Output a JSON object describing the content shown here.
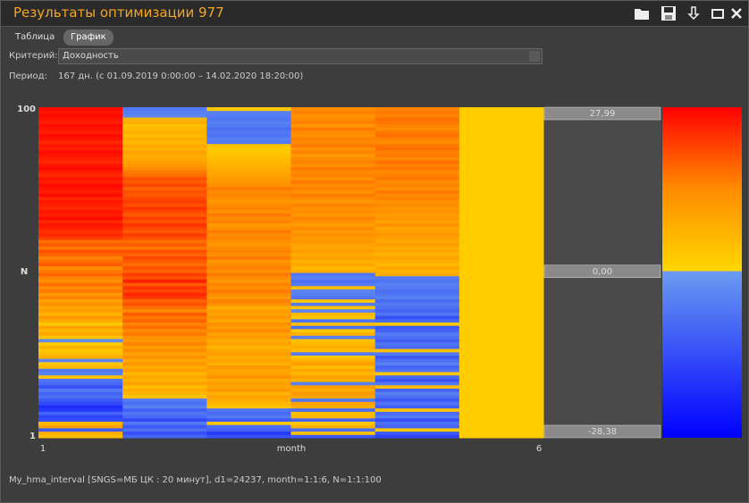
{
  "window_title": "Результаты оптимизации 977",
  "tabs": [
    "Таблица",
    "График"
  ],
  "criterion_label": "Критерий:",
  "criterion_value": "Доходность",
  "period_label": "Период:",
  "period_value": "167 дн.  (с 01.09.2019 0:00:00 – 14.02.2020 18:20:00)",
  "footer": "My_hma_interval [SNGS=МБ ЦК : 20 минут], d1=24237, month=1:1:6, N=1:1:100",
  "chart_data": {
    "type": "heatmap",
    "xlabel": "month",
    "ylabel": "N",
    "xlim": [
      1,
      6
    ],
    "xticks": [
      1,
      6
    ],
    "ylim": [
      1,
      100
    ],
    "yticks": [
      1,
      100
    ],
    "zlim": [
      -28.38,
      27.99
    ],
    "zticks": [
      {
        "value": 27.99,
        "label": "27,99"
      },
      {
        "value": 0,
        "label": "0,00"
      },
      {
        "value": -28.38,
        "label": "-28,38"
      }
    ],
    "positive_colors": [
      "#ffd700",
      "#ff8c00",
      "#ff0000"
    ],
    "negative_colors": [
      "#6a9bf0",
      "#0000ff"
    ],
    "z": [
      [
        5,
        8,
        -12,
        10,
        6,
        -14,
        -16,
        -10,
        -18,
        -20,
        -15,
        -12,
        -8,
        -10,
        -6,
        -14,
        -9,
        -7,
        4,
        -5,
        -6,
        6,
        3,
        -4,
        8,
        5,
        3,
        7,
        2,
        -3,
        4,
        9,
        6,
        10,
        3,
        8,
        12,
        7,
        11,
        9,
        13,
        10,
        15,
        12,
        16,
        14,
        17,
        13,
        15,
        18,
        16,
        14,
        19,
        17,
        15,
        18,
        20,
        16,
        19,
        17,
        22,
        24,
        23,
        25,
        26,
        24,
        27,
        25,
        26,
        24,
        25,
        26,
        24,
        27,
        25,
        26,
        27,
        25,
        26,
        24,
        25,
        27,
        26,
        24,
        25,
        26,
        27,
        25,
        26,
        24,
        26,
        27,
        25,
        26,
        27,
        25,
        26,
        27,
        26,
        27
      ],
      [
        -10,
        -14,
        -8,
        -12,
        -6,
        -15,
        -9,
        -7,
        -11,
        -5,
        -8,
        -6,
        4,
        6,
        8,
        5,
        10,
        7,
        9,
        6,
        11,
        8,
        12,
        9,
        13,
        10,
        14,
        11,
        15,
        12,
        13,
        16,
        14,
        17,
        15,
        18,
        16,
        19,
        14,
        17,
        20,
        18,
        22,
        24,
        21,
        23,
        19,
        25,
        20,
        22,
        18,
        20,
        17,
        19,
        21,
        18,
        20,
        16,
        19,
        17,
        20,
        22,
        19,
        21,
        23,
        20,
        22,
        19,
        21,
        23,
        20,
        22,
        21,
        19,
        20,
        18,
        21,
        19,
        20,
        17,
        16,
        14,
        12,
        10,
        9,
        8,
        10,
        7,
        9,
        6,
        8,
        5,
        7,
        6,
        4,
        8,
        6,
        -4,
        -5,
        -6
      ],
      [
        -14,
        -18,
        -10,
        -8,
        3,
        -12,
        -6,
        -9,
        -7,
        4,
        6,
        8,
        10,
        7,
        12,
        9,
        11,
        8,
        13,
        10,
        9,
        12,
        7,
        10,
        8,
        11,
        9,
        6,
        10,
        8,
        12,
        10,
        14,
        11,
        13,
        9,
        12,
        10,
        11,
        8,
        13,
        15,
        12,
        14,
        16,
        13,
        15,
        12,
        14,
        16,
        13,
        15,
        14,
        12,
        16,
        13,
        15,
        14,
        12,
        13,
        15,
        14,
        16,
        13,
        12,
        15,
        14,
        16,
        13,
        15,
        14,
        12,
        13,
        15,
        14,
        16,
        13,
        12,
        11,
        10,
        9,
        8,
        7,
        6,
        5,
        4,
        3,
        3,
        4,
        -6,
        -5,
        -7,
        -6,
        -8,
        -6,
        -5,
        -7,
        -6,
        -5,
        3
      ],
      [
        -12,
        4,
        -8,
        7,
        3,
        -10,
        6,
        5,
        -9,
        8,
        10,
        -6,
        9,
        12,
        8,
        11,
        -5,
        7,
        10,
        6,
        9,
        5,
        11,
        7,
        3,
        -6,
        5,
        8,
        6,
        4,
        -5,
        7,
        3,
        -8,
        5,
        -7,
        3,
        6,
        -4,
        4,
        -6,
        3,
        -7,
        -5,
        -4,
        5,
        -6,
        -8,
        -5,
        -7,
        8,
        6,
        9,
        7,
        10,
        8,
        11,
        9,
        10,
        12,
        11,
        13,
        12,
        14,
        11,
        13,
        15,
        12,
        14,
        13,
        15,
        12,
        14,
        16,
        13,
        15,
        14,
        16,
        13,
        15,
        14,
        16,
        13,
        15,
        14,
        12,
        15,
        13,
        16,
        14,
        15,
        13,
        14,
        16,
        12,
        15,
        14,
        13,
        15,
        14
      ],
      [
        -16,
        -12,
        3,
        -10,
        -8,
        -14,
        -6,
        -9,
        4,
        -11,
        -7,
        -12,
        -8,
        -5,
        -10,
        5,
        -6,
        -13,
        -9,
        3,
        -7,
        -10,
        -5,
        -8,
        -12,
        -6,
        4,
        -9,
        -7,
        -11,
        -8,
        -6,
        -10,
        -12,
        3,
        -9,
        -14,
        -7,
        -10,
        -8,
        -6,
        -9,
        -5,
        -7,
        -8,
        -6,
        -5,
        -7,
        -6,
        8,
        7,
        9,
        6,
        8,
        10,
        7,
        9,
        8,
        11,
        9,
        10,
        12,
        11,
        9,
        13,
        10,
        12,
        11,
        13,
        12,
        14,
        13,
        15,
        14,
        16,
        13,
        15,
        14,
        16,
        15,
        14,
        16,
        15,
        17,
        14,
        16,
        15,
        17,
        16,
        14,
        15,
        17,
        16,
        14,
        15,
        16,
        17,
        15,
        16,
        15
      ],
      [
        2,
        2,
        2,
        2,
        2,
        2,
        2,
        2,
        2,
        2,
        2,
        2,
        2,
        2,
        2,
        2,
        2,
        2,
        2,
        2,
        2,
        2,
        2,
        2,
        2,
        2,
        2,
        2,
        2,
        2,
        2,
        2,
        2,
        2,
        2,
        2,
        2,
        2,
        2,
        2,
        2,
        2,
        2,
        2,
        2,
        2,
        2,
        2,
        2,
        2,
        2,
        2,
        2,
        2,
        2,
        2,
        2,
        2,
        2,
        2,
        2,
        2,
        2,
        2,
        2,
        2,
        2,
        2,
        2,
        2,
        2,
        2,
        2,
        2,
        2,
        2,
        2,
        2,
        2,
        2,
        2,
        2,
        2,
        2,
        2,
        2,
        2,
        2,
        2,
        2,
        2,
        2,
        2,
        2,
        2,
        2,
        2,
        2,
        2,
        2
      ]
    ]
  }
}
